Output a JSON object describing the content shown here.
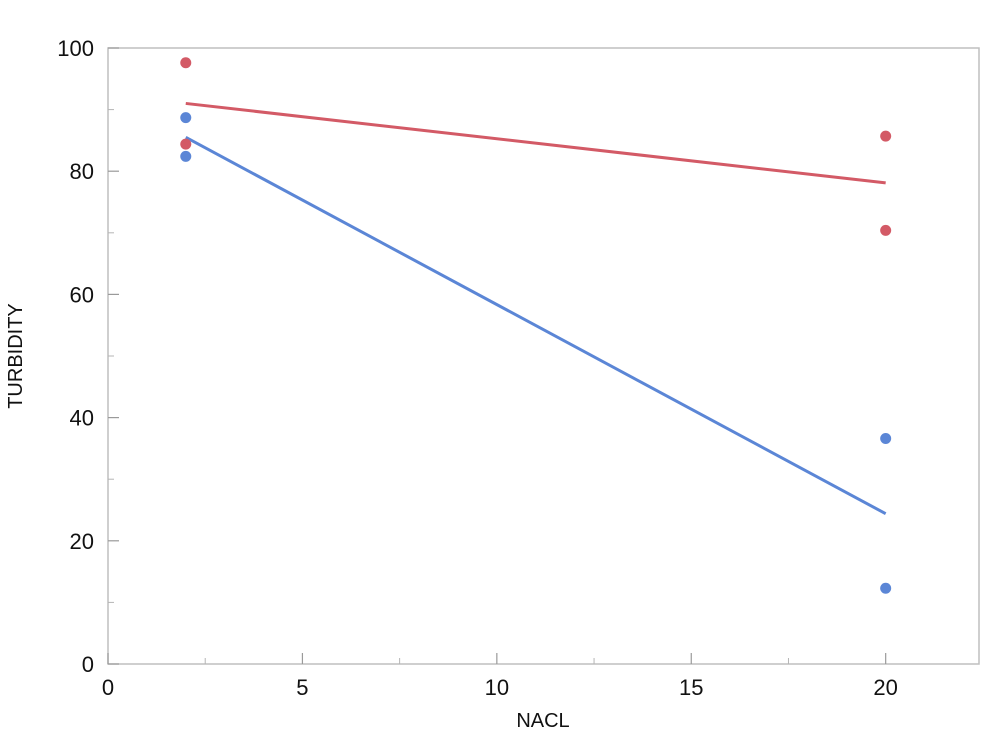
{
  "chart_data": {
    "type": "scatter",
    "xlabel": "NACL",
    "ylabel": "TURBIDITY",
    "xlim": [
      0,
      22.4
    ],
    "ylim": [
      0,
      100
    ],
    "x_ticks": [
      0,
      5,
      10,
      15,
      20
    ],
    "y_ticks": [
      0,
      20,
      40,
      60,
      80,
      100
    ],
    "grid": false,
    "legend": "none",
    "series": [
      {
        "color": "#d35a66",
        "points": [
          {
            "x": 2,
            "y": 97.6
          },
          {
            "x": 2,
            "y": 84.4
          },
          {
            "x": 20,
            "y": 85.7
          },
          {
            "x": 20,
            "y": 70.4
          }
        ],
        "fit_line": [
          {
            "x": 2,
            "y": 91.0
          },
          {
            "x": 20,
            "y": 78.1
          }
        ]
      },
      {
        "color": "#5b86d6",
        "points": [
          {
            "x": 2,
            "y": 88.7
          },
          {
            "x": 2,
            "y": 82.4
          },
          {
            "x": 20,
            "y": 36.6
          },
          {
            "x": 20,
            "y": 12.3
          }
        ],
        "fit_line": [
          {
            "x": 2,
            "y": 85.5
          },
          {
            "x": 20,
            "y": 24.4
          }
        ]
      }
    ]
  }
}
